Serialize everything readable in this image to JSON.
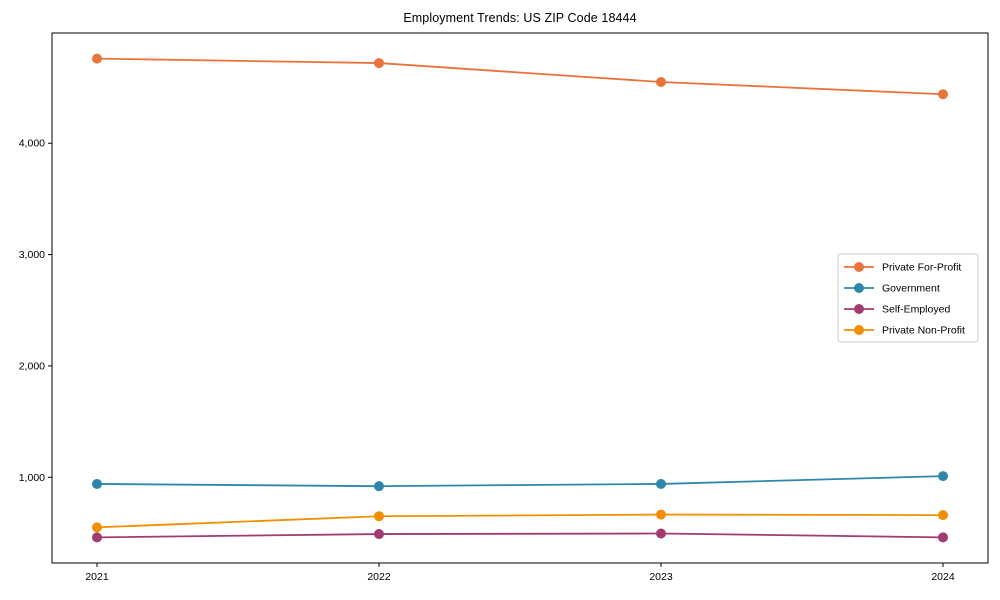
{
  "title": "Employment Trends: US ZIP Code 18444",
  "chart_data": {
    "type": "line",
    "title": "Employment Trends: US ZIP Code 18444",
    "x": [
      2021,
      2022,
      2023,
      2024
    ],
    "xtick_labels": [
      "2021",
      "2022",
      "2023",
      "2024"
    ],
    "series": [
      {
        "name": "Private For-Profit",
        "color": "#E8743B",
        "values": [
          4760,
          4720,
          4550,
          4440
        ]
      },
      {
        "name": "Government",
        "color": "#2E86AB",
        "values": [
          940,
          920,
          940,
          1010
        ]
      },
      {
        "name": "Self-Employed",
        "color": "#A23B72",
        "values": [
          460,
          490,
          495,
          460
        ]
      },
      {
        "name": "Private Non-Profit",
        "color": "#F18F01",
        "values": [
          550,
          650,
          665,
          660
        ]
      }
    ],
    "yticks": [
      1000,
      2000,
      3000,
      4000
    ],
    "ytick_labels": [
      "1,000",
      "2,000",
      "3,000",
      "4,000"
    ],
    "ylim": [
      230,
      4990
    ],
    "xlabel": "",
    "ylabel": "",
    "grid": false,
    "legend_position": "right",
    "legend_border_color": "#cccccc",
    "axis_color": "#000000"
  }
}
